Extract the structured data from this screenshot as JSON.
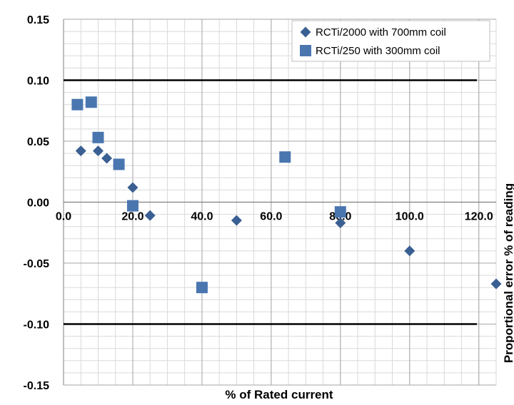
{
  "chart_data": {
    "type": "scatter",
    "xlabel": "% of Rated current",
    "ylabel": "Proportional error % of reading",
    "xlim": [
      0,
      125
    ],
    "ylim": [
      -0.15,
      0.15
    ],
    "x_ticks": [
      0,
      20,
      40,
      60,
      80,
      100,
      120
    ],
    "x_tick_labels": [
      "0.0",
      "20.0",
      "40.0",
      "60.0",
      "80.0",
      "100.0",
      "120.0"
    ],
    "y_ticks": [
      0.15,
      0.1,
      0.05,
      0.0,
      -0.05,
      -0.1,
      -0.15
    ],
    "y_tick_labels": [
      "0.15",
      "0.10",
      "0.05",
      "0.00",
      "-0.05",
      "-0.10",
      "-0.15"
    ],
    "grid": true,
    "reference_lines_y": [
      0.1,
      -0.1
    ],
    "legend_position": "top-right",
    "series": [
      {
        "name": "RCTi/2000 with 700mm coil",
        "marker": "diamond",
        "color": "#3A5F92",
        "points": [
          [
            5,
            0.042
          ],
          [
            10,
            0.042
          ],
          [
            12.5,
            0.036
          ],
          [
            20,
            0.012
          ],
          [
            25,
            -0.011
          ],
          [
            50,
            -0.015
          ],
          [
            80,
            -0.017
          ],
          [
            100,
            -0.04
          ],
          [
            125,
            -0.067
          ]
        ]
      },
      {
        "name": "RCTi/250 with 300mm coil",
        "marker": "square",
        "color": "#4A76B0",
        "points": [
          [
            4,
            0.08
          ],
          [
            8,
            0.082
          ],
          [
            10,
            0.053
          ],
          [
            16,
            0.031
          ],
          [
            20,
            -0.003
          ],
          [
            40,
            -0.07
          ],
          [
            64,
            0.037
          ],
          [
            80,
            -0.008
          ]
        ]
      }
    ]
  }
}
